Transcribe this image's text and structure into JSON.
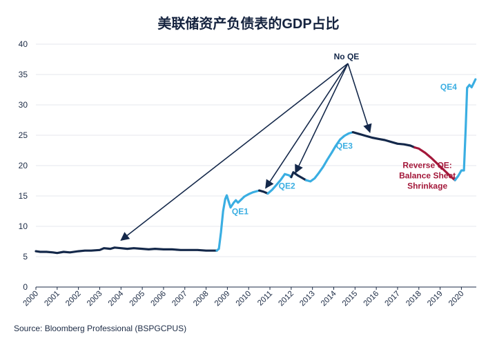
{
  "chart_data": {
    "type": "line",
    "title": "美联储资产负债表的GDP占比",
    "xlabel": "",
    "ylabel": "",
    "ylim": [
      0,
      40
    ],
    "xlim": [
      2000,
      2020.7
    ],
    "y_ticks": [
      0,
      5,
      10,
      15,
      20,
      25,
      30,
      35,
      40
    ],
    "x_ticks": [
      "2000",
      "2001",
      "2002",
      "2003",
      "2004",
      "2005",
      "2006",
      "2007",
      "2008",
      "2009",
      "2010",
      "2011",
      "2012",
      "2013",
      "2014",
      "2015",
      "2016",
      "2017",
      "2018",
      "2019",
      "2020"
    ],
    "grid": "horizontal",
    "colors": {
      "no_qe": "#14284a",
      "qe": "#3aaee2",
      "reverse_qe": "#a3183a"
    },
    "series": [
      {
        "phase": "no_qe",
        "color": "#14284a",
        "points": [
          [
            2000.0,
            5.9
          ],
          [
            2000.2,
            5.8
          ],
          [
            2000.5,
            5.8
          ],
          [
            2000.8,
            5.7
          ],
          [
            2001.0,
            5.6
          ],
          [
            2001.3,
            5.8
          ],
          [
            2001.6,
            5.7
          ],
          [
            2002.0,
            5.9
          ],
          [
            2002.3,
            6.0
          ],
          [
            2002.6,
            6.0
          ],
          [
            2003.0,
            6.1
          ],
          [
            2003.2,
            6.4
          ],
          [
            2003.5,
            6.3
          ],
          [
            2003.7,
            6.5
          ],
          [
            2004.0,
            6.4
          ],
          [
            2004.3,
            6.3
          ],
          [
            2004.6,
            6.4
          ],
          [
            2005.0,
            6.3
          ],
          [
            2005.3,
            6.2
          ],
          [
            2005.6,
            6.3
          ],
          [
            2006.0,
            6.2
          ],
          [
            2006.4,
            6.2
          ],
          [
            2006.8,
            6.1
          ],
          [
            2007.2,
            6.1
          ],
          [
            2007.6,
            6.1
          ],
          [
            2008.0,
            6.0
          ],
          [
            2008.3,
            6.0
          ],
          [
            2008.5,
            6.0
          ]
        ]
      },
      {
        "phase": "qe1",
        "color": "#3aaee2",
        "points": [
          [
            2008.5,
            6.0
          ],
          [
            2008.6,
            6.3
          ],
          [
            2008.7,
            9.0
          ],
          [
            2008.8,
            12.5
          ],
          [
            2008.9,
            14.5
          ],
          [
            2008.97,
            15.1
          ],
          [
            2009.05,
            14.2
          ],
          [
            2009.15,
            13.1
          ],
          [
            2009.3,
            13.9
          ],
          [
            2009.4,
            14.3
          ],
          [
            2009.5,
            13.9
          ],
          [
            2009.65,
            14.4
          ],
          [
            2009.8,
            14.9
          ],
          [
            2010.0,
            15.3
          ],
          [
            2010.2,
            15.6
          ],
          [
            2010.4,
            15.8
          ],
          [
            2010.5,
            15.9
          ]
        ]
      },
      {
        "phase": "no_qe",
        "color": "#14284a",
        "points": [
          [
            2010.5,
            15.9
          ],
          [
            2010.7,
            15.7
          ],
          [
            2010.9,
            15.4
          ]
        ]
      },
      {
        "phase": "qe2",
        "color": "#3aaee2",
        "points": [
          [
            2010.9,
            15.4
          ],
          [
            2011.1,
            16.0
          ],
          [
            2011.3,
            16.8
          ],
          [
            2011.5,
            17.6
          ],
          [
            2011.7,
            18.6
          ],
          [
            2011.9,
            18.4
          ],
          [
            2012.0,
            18.1
          ]
        ]
      },
      {
        "phase": "no_qe",
        "color": "#14284a",
        "points": [
          [
            2012.0,
            18.1
          ],
          [
            2012.1,
            18.9
          ],
          [
            2012.3,
            18.4
          ],
          [
            2012.5,
            18.0
          ],
          [
            2012.7,
            17.6
          ]
        ]
      },
      {
        "phase": "qe3",
        "color": "#3aaee2",
        "points": [
          [
            2012.7,
            17.6
          ],
          [
            2012.9,
            17.4
          ],
          [
            2013.1,
            17.9
          ],
          [
            2013.3,
            18.8
          ],
          [
            2013.5,
            19.8
          ],
          [
            2013.7,
            21.0
          ],
          [
            2013.9,
            22.1
          ],
          [
            2014.1,
            23.3
          ],
          [
            2014.3,
            24.3
          ],
          [
            2014.5,
            24.9
          ],
          [
            2014.7,
            25.3
          ],
          [
            2014.9,
            25.5
          ]
        ]
      },
      {
        "phase": "no_qe",
        "color": "#14284a",
        "points": [
          [
            2014.9,
            25.5
          ],
          [
            2015.2,
            25.2
          ],
          [
            2015.5,
            24.9
          ],
          [
            2015.8,
            24.6
          ],
          [
            2016.1,
            24.4
          ],
          [
            2016.4,
            24.2
          ],
          [
            2016.7,
            23.9
          ],
          [
            2017.0,
            23.6
          ],
          [
            2017.3,
            23.5
          ],
          [
            2017.6,
            23.3
          ],
          [
            2017.8,
            23.0
          ]
        ]
      },
      {
        "phase": "reverse_qe",
        "color": "#a3183a",
        "points": [
          [
            2017.8,
            23.0
          ],
          [
            2018.0,
            22.8
          ],
          [
            2018.3,
            22.1
          ],
          [
            2018.6,
            21.2
          ],
          [
            2018.9,
            20.2
          ],
          [
            2019.2,
            19.2
          ],
          [
            2019.5,
            18.2
          ],
          [
            2019.7,
            17.6
          ]
        ]
      },
      {
        "phase": "qe4",
        "color": "#3aaee2",
        "points": [
          [
            2019.7,
            17.6
          ],
          [
            2019.85,
            18.3
          ],
          [
            2020.0,
            19.2
          ],
          [
            2020.12,
            19.2
          ],
          [
            2020.2,
            26.0
          ],
          [
            2020.27,
            32.8
          ],
          [
            2020.38,
            33.3
          ],
          [
            2020.48,
            32.9
          ],
          [
            2020.58,
            33.6
          ],
          [
            2020.66,
            34.2
          ]
        ]
      }
    ],
    "annotations": [
      {
        "text": "No QE",
        "color": "#14284a",
        "at": [
          2014.6,
          37.5
        ],
        "arrows_to": [
          [
            2004.0,
            7.7
          ],
          [
            2010.8,
            16.3
          ],
          [
            2012.2,
            18.8
          ],
          [
            2015.7,
            25.5
          ]
        ]
      },
      {
        "text": "QE1",
        "color": "#3aaee2",
        "at": [
          2009.6,
          12.0
        ]
      },
      {
        "text": "QE2",
        "color": "#3aaee2",
        "at": [
          2011.8,
          16.2
        ]
      },
      {
        "text": "QE3",
        "color": "#3aaee2",
        "at": [
          2014.5,
          22.8
        ]
      },
      {
        "text": "QE4",
        "color": "#3aaee2",
        "at": [
          2019.4,
          32.5
        ]
      },
      {
        "lines": [
          "Reverse QE:",
          "Balance Sheet",
          "Shrinkage"
        ],
        "color": "#a3183a",
        "at": [
          2018.4,
          19.6
        ]
      }
    ]
  },
  "source": "Source: Bloomberg Professional (BSPGCPUS)"
}
